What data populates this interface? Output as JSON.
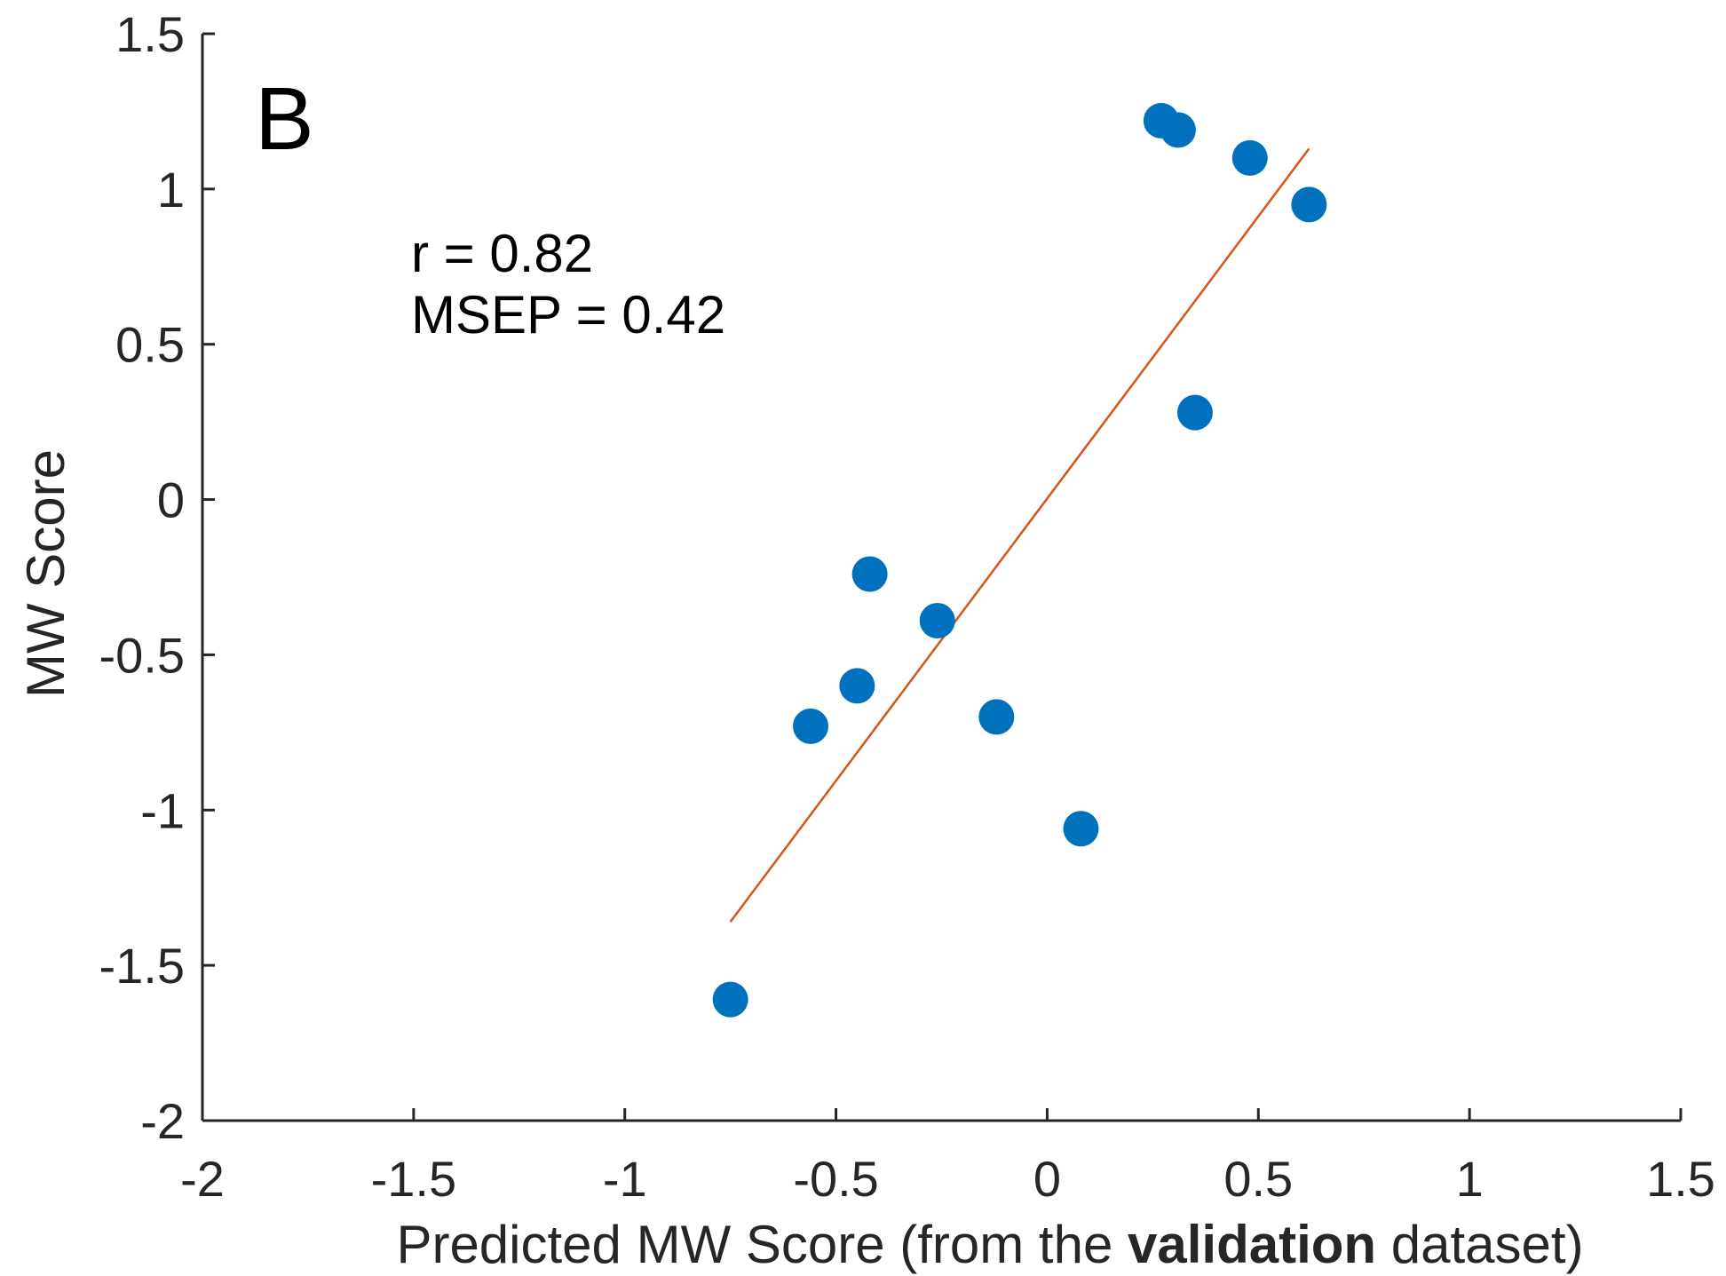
{
  "chart_data": {
    "type": "scatter",
    "panel_letter": "B",
    "xlabel_parts": [
      {
        "text": "Predicted MW Score (from the ",
        "bold": false
      },
      {
        "text": "validation",
        "bold": true
      },
      {
        "text": " dataset)",
        "bold": false
      }
    ],
    "ylabel": "MW Score",
    "xlim": [
      -2,
      1.5
    ],
    "ylim": [
      -2,
      1.5
    ],
    "xticks": [
      -2,
      -1.5,
      -1,
      -0.5,
      0,
      0.5,
      1,
      1.5
    ],
    "yticks": [
      -2,
      -1.5,
      -1,
      -0.5,
      0,
      0.5,
      1,
      1.5
    ],
    "xtick_labels": [
      "-2",
      "-1.5",
      "-1",
      "-0.5",
      "0",
      "0.5",
      "1",
      "1.5"
    ],
    "ytick_labels": [
      "-2",
      "-1.5",
      "-1",
      "-0.5",
      "0",
      "0.5",
      "1",
      "1.5"
    ],
    "grid": false,
    "annotations": [
      "r = 0.82",
      "MSEP = 0.42"
    ],
    "points": [
      {
        "x": -0.75,
        "y": -1.61
      },
      {
        "x": -0.56,
        "y": -0.73
      },
      {
        "x": -0.45,
        "y": -0.6
      },
      {
        "x": -0.42,
        "y": -0.24
      },
      {
        "x": -0.26,
        "y": -0.39
      },
      {
        "x": -0.12,
        "y": -0.7
      },
      {
        "x": 0.08,
        "y": -1.06
      },
      {
        "x": 0.27,
        "y": 1.22
      },
      {
        "x": 0.31,
        "y": 1.19
      },
      {
        "x": 0.35,
        "y": 0.28
      },
      {
        "x": 0.48,
        "y": 1.1
      },
      {
        "x": 0.62,
        "y": 0.95
      }
    ],
    "fit_line": {
      "x": [
        -0.75,
        0.62
      ],
      "y": [
        -1.36,
        1.13
      ]
    },
    "colors": {
      "points": "#0072BD",
      "fit_line": "#D95319",
      "axis": "#262626"
    }
  }
}
